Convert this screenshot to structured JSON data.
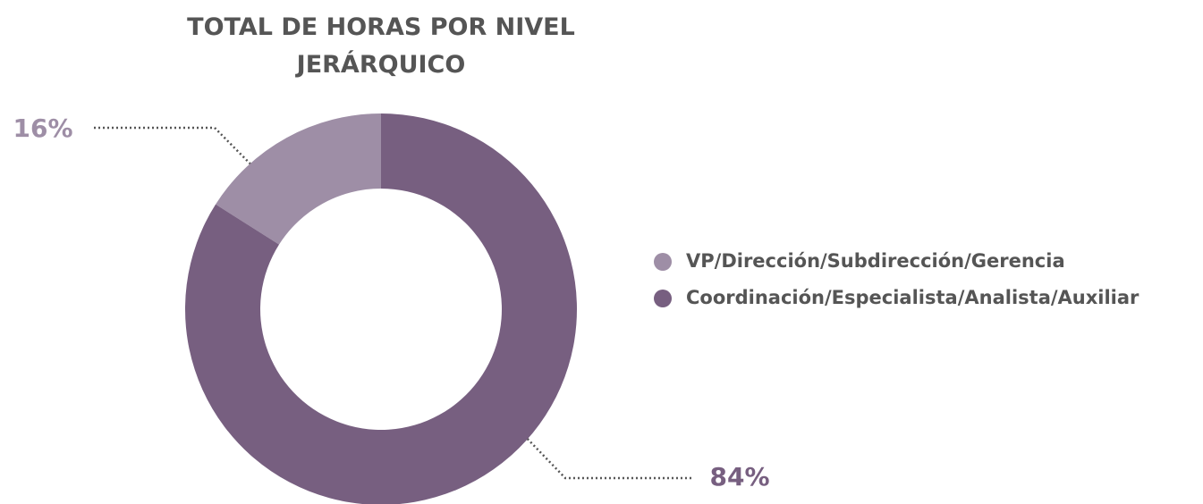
{
  "chart_data": {
    "type": "donut",
    "title": "TOTAL DE HORAS POR NIVEL JERÁRQUICO",
    "categories": [
      "VP/Dirección/Subdirección/Gerencia",
      "Coordinación/Especialista/Analista/Auxiliar"
    ],
    "values": [
      16,
      84
    ],
    "value_labels": [
      "16%",
      "84%"
    ],
    "colors": [
      "#9e8ea6",
      "#775f80"
    ],
    "legend": "right"
  }
}
